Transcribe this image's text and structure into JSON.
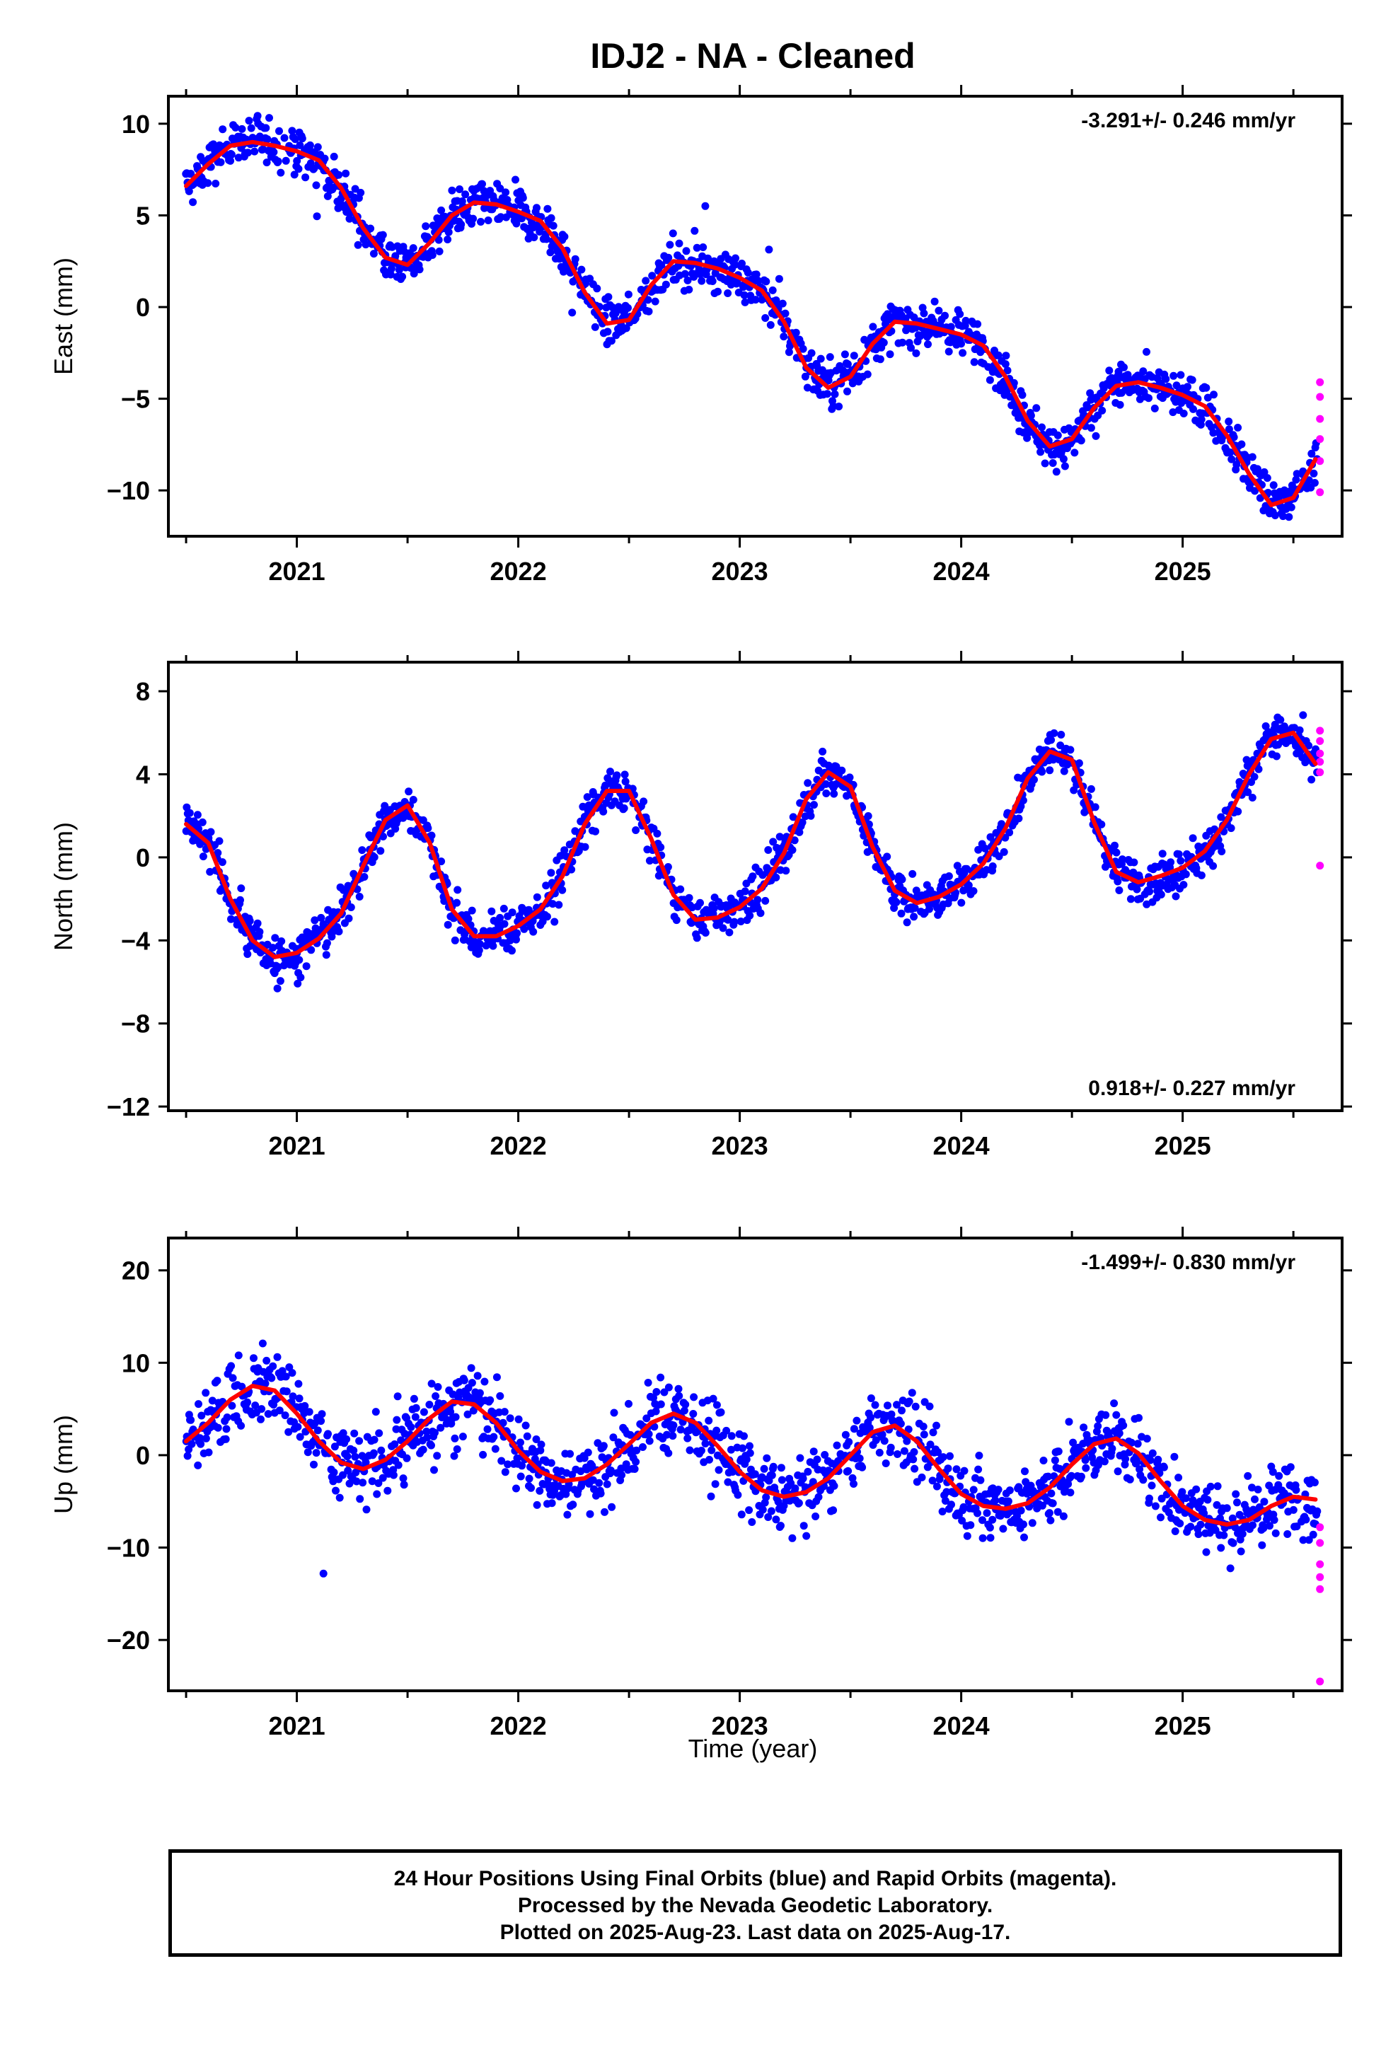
{
  "title": "IDJ2  - NA - Cleaned",
  "xlabel": "Time (year)",
  "caption": {
    "line1": "24 Hour Positions Using Final Orbits (blue) and Rapid Orbits (magenta).",
    "line2": "Processed by the Nevada Geodetic Laboratory.",
    "line3": "Plotted on 2025-Aug-23. Last data on 2025-Aug-17."
  },
  "colors": {
    "final_orbits": "#0000ff",
    "rapid_orbits": "#ff00ff",
    "model_fit": "#ff0000",
    "frame": "#000000"
  },
  "chart_data": [
    {
      "type": "scatter",
      "ylabel": "East (mm)",
      "rate": "-3.291+/- 0.246 mm/yr",
      "rate_position": "top-right",
      "xlim": [
        2020.42,
        2025.72
      ],
      "ylim": [
        -12.5,
        11.5
      ],
      "xticks": [
        2021,
        2022,
        2023,
        2024,
        2025
      ],
      "xtick_labels": [
        "2021",
        "2022",
        "2023",
        "2024",
        "2025"
      ],
      "yticks": [
        10,
        5,
        0,
        -5,
        -10
      ],
      "ytick_labels": [
        "10",
        "5",
        "0",
        "−5",
        "−10"
      ],
      "fit": {
        "x": [
          2020.5,
          2020.6,
          2020.7,
          2020.8,
          2020.9,
          2021.0,
          2021.1,
          2021.2,
          2021.3,
          2021.4,
          2021.5,
          2021.6,
          2021.7,
          2021.8,
          2021.9,
          2022.0,
          2022.1,
          2022.2,
          2022.3,
          2022.4,
          2022.5,
          2022.6,
          2022.7,
          2022.8,
          2022.9,
          2023.0,
          2023.1,
          2023.2,
          2023.3,
          2023.4,
          2023.5,
          2023.6,
          2023.7,
          2023.8,
          2023.9,
          2024.0,
          2024.1,
          2024.2,
          2024.3,
          2024.4,
          2024.5,
          2024.6,
          2024.7,
          2024.8,
          2024.9,
          2025.0,
          2025.1,
          2025.2,
          2025.3,
          2025.4,
          2025.5,
          2025.6
        ],
        "y": [
          6.6,
          7.8,
          8.8,
          9.0,
          8.8,
          8.5,
          8.0,
          6.5,
          4.3,
          2.7,
          2.3,
          3.5,
          5.0,
          5.7,
          5.6,
          5.2,
          4.7,
          3.2,
          0.8,
          -0.9,
          -0.7,
          1.2,
          2.5,
          2.4,
          2.1,
          1.6,
          0.9,
          -0.8,
          -3.3,
          -4.4,
          -3.8,
          -2.0,
          -0.8,
          -0.9,
          -1.2,
          -1.5,
          -2.1,
          -3.8,
          -6.2,
          -7.6,
          -7.2,
          -5.5,
          -4.3,
          -4.1,
          -4.4,
          -4.8,
          -5.4,
          -7.0,
          -9.1,
          -10.8,
          -10.4,
          -8.3
        ]
      },
      "rapid": {
        "x": [
          2025.62,
          2025.62,
          2025.62,
          2025.62,
          2025.62,
          2025.62
        ],
        "y": [
          -4.1,
          -4.9,
          -6.1,
          -7.2,
          -8.4,
          -10.1
        ]
      },
      "scatter_spread": 1.0,
      "scatter_step": 0.0035
    },
    {
      "type": "scatter",
      "ylabel": "North (mm)",
      "rate": "0.918+/- 0.227 mm/yr",
      "rate_position": "bottom-right",
      "xlim": [
        2020.42,
        2025.72
      ],
      "ylim": [
        -12.2,
        9.4
      ],
      "xticks": [
        2021,
        2022,
        2023,
        2024,
        2025
      ],
      "xtick_labels": [
        "2021",
        "2022",
        "2023",
        "2024",
        "2025"
      ],
      "yticks": [
        8,
        4,
        0,
        -4,
        -8,
        -12
      ],
      "ytick_labels": [
        "8",
        "4",
        "0",
        "−4",
        "−8",
        "−12"
      ],
      "fit": {
        "x": [
          2020.5,
          2020.6,
          2020.7,
          2020.8,
          2020.9,
          2021.0,
          2021.1,
          2021.2,
          2021.3,
          2021.4,
          2021.5,
          2021.6,
          2021.7,
          2021.8,
          2021.9,
          2022.0,
          2022.1,
          2022.2,
          2022.3,
          2022.4,
          2022.5,
          2022.6,
          2022.7,
          2022.8,
          2022.9,
          2023.0,
          2023.1,
          2023.2,
          2023.3,
          2023.4,
          2023.5,
          2023.6,
          2023.7,
          2023.8,
          2023.9,
          2024.0,
          2024.1,
          2024.2,
          2024.3,
          2024.4,
          2024.5,
          2024.6,
          2024.7,
          2024.8,
          2024.9,
          2025.0,
          2025.1,
          2025.2,
          2025.3,
          2025.4,
          2025.5,
          2025.6
        ],
        "y": [
          1.6,
          0.7,
          -2.0,
          -4.0,
          -4.8,
          -4.6,
          -3.9,
          -2.7,
          -0.4,
          1.8,
          2.5,
          0.7,
          -2.5,
          -3.8,
          -3.8,
          -3.3,
          -2.5,
          -0.9,
          1.6,
          3.2,
          3.2,
          0.9,
          -1.8,
          -3.0,
          -2.9,
          -2.4,
          -1.5,
          0.2,
          2.8,
          4.1,
          3.4,
          0.5,
          -1.6,
          -2.2,
          -1.9,
          -1.3,
          -0.3,
          1.4,
          3.8,
          5.1,
          4.7,
          1.7,
          -0.7,
          -1.2,
          -0.9,
          -0.5,
          0.3,
          1.8,
          4.0,
          5.7,
          6.0,
          4.5
        ]
      },
      "rapid": {
        "x": [
          2025.62,
          2025.62,
          2025.62,
          2025.62,
          2025.62,
          2025.62
        ],
        "y": [
          6.1,
          5.6,
          5.0,
          4.6,
          4.1,
          -0.4
        ]
      },
      "scatter_spread": 0.85,
      "scatter_step": 0.0035
    },
    {
      "type": "scatter",
      "ylabel": "Up (mm)",
      "rate": "-1.499+/- 0.830 mm/yr",
      "rate_position": "top-right",
      "xlim": [
        2020.42,
        2025.72
      ],
      "ylim": [
        -25.5,
        23.5
      ],
      "xticks": [
        2021,
        2022,
        2023,
        2024,
        2025
      ],
      "xtick_labels": [
        "2021",
        "2022",
        "2023",
        "2024",
        "2025"
      ],
      "yticks": [
        20,
        10,
        0,
        -10,
        -20
      ],
      "ytick_labels": [
        "20",
        "10",
        "0",
        "−10",
        "−20"
      ],
      "fit": {
        "x": [
          2020.5,
          2020.6,
          2020.7,
          2020.8,
          2020.9,
          2021.0,
          2021.1,
          2021.2,
          2021.3,
          2021.4,
          2021.5,
          2021.6,
          2021.7,
          2021.8,
          2021.9,
          2022.0,
          2022.1,
          2022.2,
          2022.3,
          2022.4,
          2022.5,
          2022.6,
          2022.7,
          2022.8,
          2022.9,
          2023.0,
          2023.1,
          2023.2,
          2023.3,
          2023.4,
          2023.5,
          2023.6,
          2023.7,
          2023.8,
          2023.9,
          2024.0,
          2024.1,
          2024.2,
          2024.3,
          2024.4,
          2024.5,
          2024.6,
          2024.7,
          2024.8,
          2024.9,
          2025.0,
          2025.1,
          2025.2,
          2025.3,
          2025.4,
          2025.5,
          2025.6
        ],
        "y": [
          1.5,
          3.5,
          6.0,
          7.5,
          7.0,
          4.5,
          1.5,
          -0.8,
          -1.5,
          -0.5,
          1.5,
          4.0,
          5.8,
          5.5,
          3.5,
          0.5,
          -1.8,
          -2.8,
          -2.5,
          -1.0,
          1.2,
          3.5,
          4.5,
          3.5,
          1.0,
          -1.8,
          -3.8,
          -4.5,
          -4.0,
          -2.5,
          0.0,
          2.5,
          3.2,
          1.5,
          -1.5,
          -4.2,
          -5.5,
          -5.8,
          -5.2,
          -3.5,
          -1.0,
          1.2,
          1.8,
          0.2,
          -2.8,
          -5.5,
          -7.0,
          -7.5,
          -7.0,
          -5.5,
          -4.5,
          -4.8
        ]
      },
      "rapid": {
        "x": [
          2025.62,
          2025.62,
          2025.62,
          2025.62,
          2025.62,
          2025.62
        ],
        "y": [
          -7.8,
          -9.5,
          -11.8,
          -13.2,
          -14.5,
          -24.5
        ]
      },
      "scatter_spread": 3.3,
      "scatter_step": 0.0035
    }
  ]
}
